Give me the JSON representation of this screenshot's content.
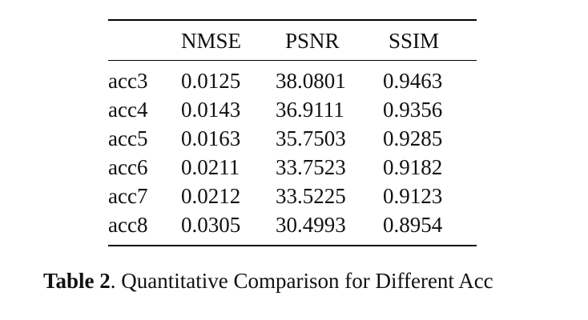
{
  "table": {
    "columns": [
      "",
      "NMSE",
      "PSNR",
      "SSIM"
    ],
    "rows": [
      [
        "acc3",
        "0.0125",
        "38.0801",
        "0.9463"
      ],
      [
        "acc4",
        "0.0143",
        "36.9111",
        "0.9356"
      ],
      [
        "acc5",
        "0.0163",
        "35.7503",
        "0.9285"
      ],
      [
        "acc6",
        "0.0211",
        "33.7523",
        "0.9182"
      ],
      [
        "acc7",
        "0.0212",
        "33.5225",
        "0.9123"
      ],
      [
        "acc8",
        "0.0305",
        "30.4993",
        "0.8954"
      ]
    ]
  },
  "caption": {
    "label": "Table 2",
    "punct": ".",
    "text": " Quantitative Comparison for Different Acc"
  }
}
